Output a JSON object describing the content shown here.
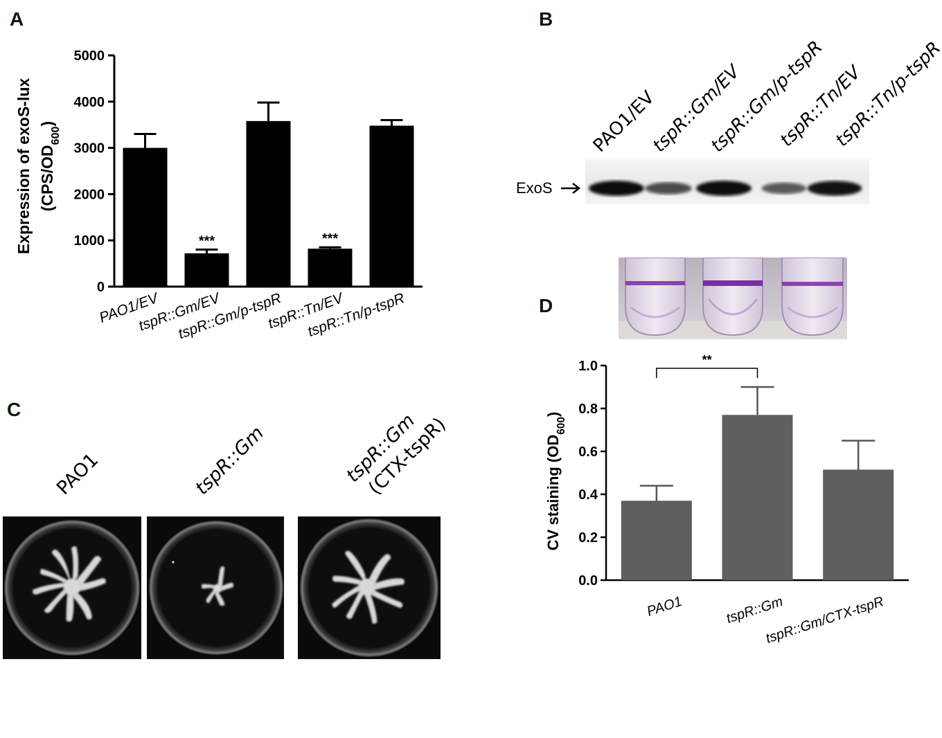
{
  "panels": {
    "a": "A",
    "b": "B",
    "c": "C",
    "d": "D"
  },
  "panel_b": {
    "lanes": [
      "PAO1/EV",
      "tspR::Gm/EV",
      "tspR::Gm/p-tspR",
      "tspR::Tn/EV",
      "tspR::Tn/p-tspR"
    ],
    "band_label": "ExoS",
    "band_intensity": [
      1.0,
      0.55,
      1.0,
      0.45,
      0.95
    ]
  },
  "panel_c": {
    "plates": [
      {
        "label": "PAO1",
        "label2": ""
      },
      {
        "label": "tspR::Gm",
        "label2": ""
      },
      {
        "label": "tspR::Gm",
        "label2": "(CTX-tspR)"
      }
    ]
  },
  "chart_data": [
    {
      "id": "A",
      "type": "bar",
      "ylabel": "Expression of exoS-lux",
      "ylabel2": "(CPS/OD600)",
      "ylim": [
        0,
        5000
      ],
      "yticks": [
        "0",
        "1000",
        "2000",
        "3000",
        "4000",
        "5000"
      ],
      "categories": [
        "PAO1/EV",
        "tspR::Gm/EV",
        "tspR::Gm/p-tspR",
        "tspR::Tn/EV",
        "tspR::Tn/p-tspR"
      ],
      "values": [
        3000,
        720,
        3580,
        820,
        3480
      ],
      "errors": [
        300,
        80,
        400,
        30,
        120
      ],
      "significance": [
        "",
        "***",
        "",
        "***",
        ""
      ],
      "color": "#000000"
    },
    {
      "id": "D",
      "type": "bar",
      "ylabel": "CV staining (OD600)",
      "ylim": [
        0,
        1.0
      ],
      "yticks": [
        "0.0",
        "0.2",
        "0.4",
        "0.6",
        "0.8",
        "1.0"
      ],
      "categories": [
        "PAO1",
        "tspR::Gm",
        "tspR::Gm/CTX-tspR"
      ],
      "values": [
        0.37,
        0.77,
        0.515
      ],
      "errors": [
        0.07,
        0.13,
        0.135
      ],
      "significance_bracket": {
        "from": 0,
        "to": 1,
        "label": "**"
      },
      "color": "#5f5f5f"
    }
  ]
}
